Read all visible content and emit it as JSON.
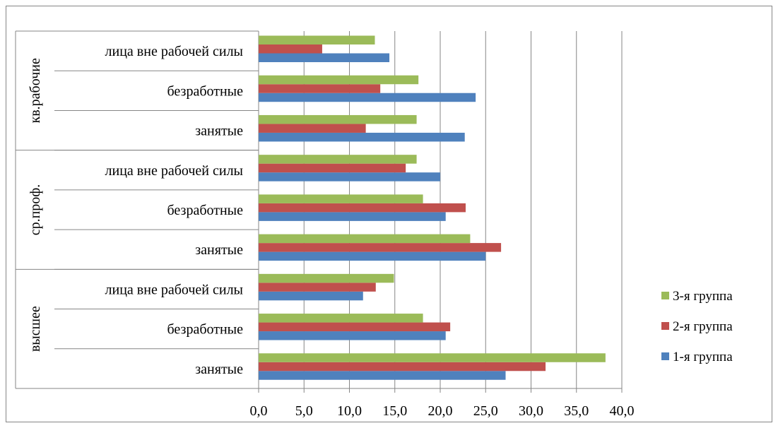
{
  "chart_data": {
    "type": "bar",
    "orientation": "horizontal",
    "xlim": [
      0,
      40
    ],
    "xticks": [
      "0,0",
      "5,0",
      "10,0",
      "15,0",
      "20,0",
      "25,0",
      "30,0",
      "35,0",
      "40,0"
    ],
    "grid": "vertical",
    "legend_position": "right",
    "groups": [
      {
        "name": "высшее",
        "categories": [
          "занятые",
          "безработные",
          "лица вне рабочей силы"
        ]
      },
      {
        "name": "ср.проф.",
        "categories": [
          "занятые",
          "безработные",
          "лица вне рабочей силы"
        ]
      },
      {
        "name": "кв.рабочие",
        "categories": [
          "занятые",
          "безработные",
          "лица вне рабочей силы"
        ]
      }
    ],
    "series": [
      {
        "name": "1-я группа",
        "color": "#4F81BD",
        "values": [
          27.2,
          20.6,
          11.5,
          25.0,
          20.6,
          20.0,
          22.7,
          23.9,
          14.4
        ]
      },
      {
        "name": "2-я группа",
        "color": "#C0504D",
        "values": [
          31.6,
          21.1,
          12.9,
          26.7,
          22.8,
          16.2,
          11.8,
          13.4,
          7.0
        ]
      },
      {
        "name": "3-я группа",
        "color": "#9BBB59",
        "values": [
          38.2,
          18.1,
          14.9,
          23.3,
          18.1,
          17.4,
          17.4,
          17.6,
          12.8
        ]
      }
    ]
  }
}
